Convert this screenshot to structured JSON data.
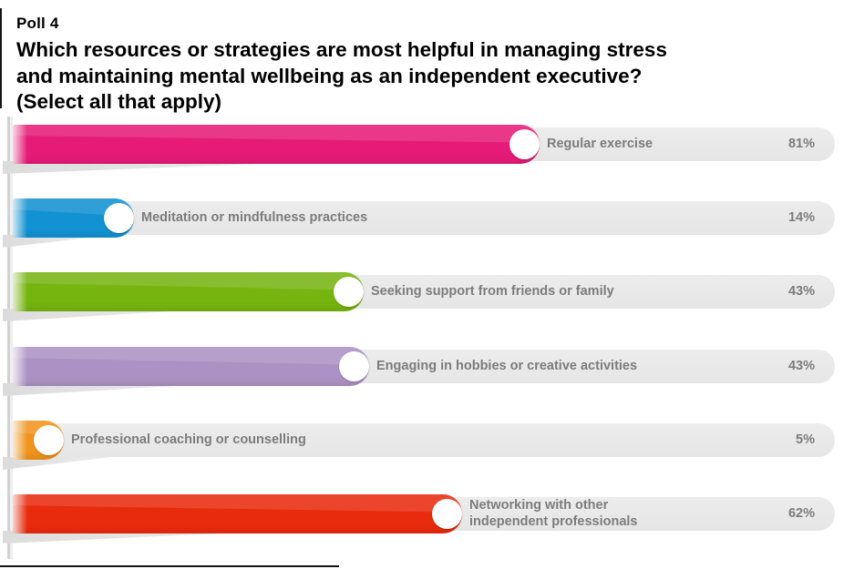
{
  "header": {
    "kicker": "Poll 4",
    "question_lines": [
      "Which resources or strategies are most helpful in managing stress",
      "and maintaining mental wellbeing as an independent executive?",
      "(Select all that apply)"
    ]
  },
  "chart_data": {
    "type": "bar",
    "orientation": "horizontal",
    "title": "Poll 4 — Which resources or strategies are most helpful in managing stress and maintaining mental wellbeing as an independent executive? (Select all that apply)",
    "categories": [
      "Regular exercise",
      "Meditation or mindfulness practices",
      "Seeking support from friends or family",
      "Engaging in hobbies or creative activities",
      "Professional coaching or counselling",
      "Networking with other independent professionals"
    ],
    "values": [
      81,
      14,
      43,
      43,
      5,
      62
    ],
    "unit": "%",
    "xlim": [
      0,
      100
    ],
    "grid": false,
    "legend": false,
    "bars": [
      {
        "label_lines": [
          "Regular exercise"
        ],
        "value": 81,
        "display": "81%",
        "color": "#E61B77",
        "width_frac": 0.64
      },
      {
        "label_lines": [
          "Meditation or mindfulness practices"
        ],
        "value": 14,
        "display": "14%",
        "color": "#1291D3",
        "width_frac": 0.145
      },
      {
        "label_lines": [
          "Seeking support from friends or family"
        ],
        "value": 43,
        "display": "43%",
        "color": "#76B40F",
        "width_frac": 0.425
      },
      {
        "label_lines": [
          "Engaging in hobbies or creative activities"
        ],
        "value": 43,
        "display": "43%",
        "color": "#AC92C4",
        "width_frac": 0.432
      },
      {
        "label_lines": [
          "Professional coaching or counselling"
        ],
        "value": 5,
        "display": "5%",
        "color": "#F0941E",
        "width_frac": 0.06
      },
      {
        "label_lines": [
          "Networking with other",
          "independent professionals"
        ],
        "value": 62,
        "display": "62%",
        "color": "#E92B0D",
        "width_frac": 0.545
      }
    ],
    "style": {
      "track_color": "#E9E9E9",
      "knob_color": "#FFFFFF",
      "label_color": "#7C7C7C",
      "axis_color": "#D2D2D2",
      "title_color": "#000000"
    }
  }
}
